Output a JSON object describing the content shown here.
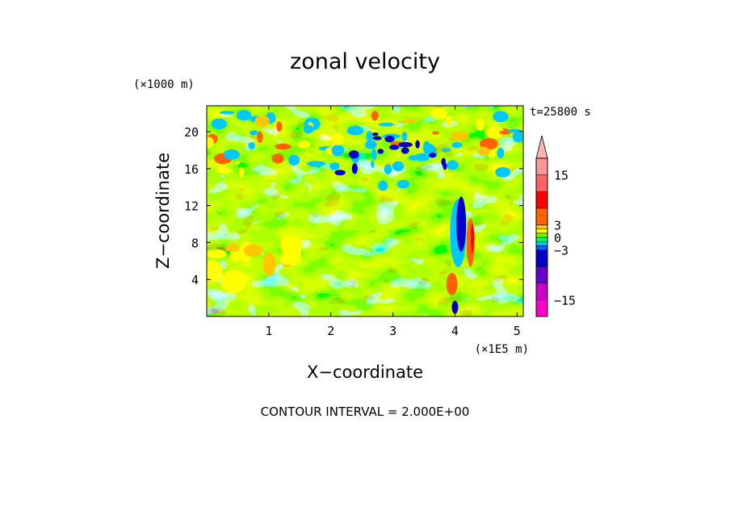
{
  "chart_data": {
    "type": "heatmap",
    "title": "zonal velocity",
    "xlabel": "X−coordinate",
    "ylabel": "Z−coordinate",
    "x_scale_label": "(×1E5 m)",
    "y_scale_label": "(×1000 m)",
    "time_label": "t=25800 s",
    "contour_interval_label": "CONTOUR INTERVAL = 2.000E+00",
    "xlim": [
      0,
      5.1
    ],
    "ylim": [
      0,
      22.8
    ],
    "x_ticks": [
      {
        "value": 1,
        "label": "1"
      },
      {
        "value": 2,
        "label": "2"
      },
      {
        "value": 3,
        "label": "3"
      },
      {
        "value": 4,
        "label": "4"
      },
      {
        "value": 5,
        "label": "5"
      }
    ],
    "y_ticks": [
      {
        "value": 4,
        "label": "4"
      },
      {
        "value": 8,
        "label": "8"
      },
      {
        "value": 12,
        "label": "12"
      },
      {
        "value": 16,
        "label": "16"
      },
      {
        "value": 20,
        "label": "20"
      }
    ],
    "colorbar": {
      "range": [
        -19,
        19
      ],
      "levels": [
        {
          "from": -19,
          "to": -15,
          "color": "#ff00c8"
        },
        {
          "from": -15,
          "to": -11,
          "color": "#c800c8"
        },
        {
          "from": -11,
          "to": -7,
          "color": "#6400c8"
        },
        {
          "from": -7,
          "to": -3,
          "color": "#0000c8"
        },
        {
          "from": -3,
          "to": -2,
          "color": "#0064ff"
        },
        {
          "from": -2,
          "to": -1,
          "color": "#00c8ff"
        },
        {
          "from": -1,
          "to": 0,
          "color": "#00ff64"
        },
        {
          "from": 0,
          "to": 1,
          "color": "#64ff00"
        },
        {
          "from": 1,
          "to": 2,
          "color": "#ffff00"
        },
        {
          "from": 2,
          "to": 3,
          "color": "#ffc800"
        },
        {
          "from": 3,
          "to": 7,
          "color": "#ff6400"
        },
        {
          "from": 7,
          "to": 11,
          "color": "#ff0000"
        },
        {
          "from": 11,
          "to": 15,
          "color": "#ff6464"
        },
        {
          "from": 15,
          "to": 19,
          "color": "#ff9696"
        }
      ],
      "overflow_color": "#ffb4b4",
      "labels": [
        {
          "value": 15,
          "label": "15"
        },
        {
          "value": 3,
          "label": "3"
        },
        {
          "value": 0,
          "label": "0"
        },
        {
          "value": -3,
          "label": "−3"
        },
        {
          "value": -15,
          "label": "−15"
        }
      ]
    },
    "field_palette": {
      "strong_negative": "#0000c8",
      "negative": "#00c8ff",
      "weak_negative": "#00ff64",
      "weak_positive": "#ffff00",
      "positive": "#ffc800",
      "strong_positive": "#ff6400",
      "peak": "#ff0000"
    }
  }
}
